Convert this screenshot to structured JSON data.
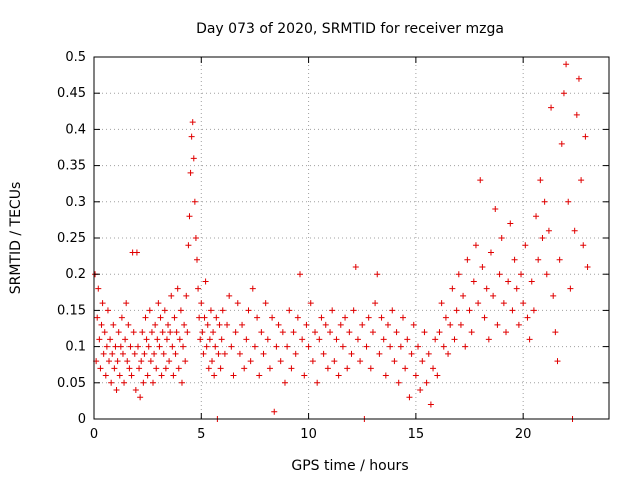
{
  "chart_data": {
    "type": "scatter",
    "title": "Day 073 of 2020, SRMTID for receiver mzga",
    "xlabel": "GPS time / hours",
    "ylabel": "SRMTID / TECUs",
    "xlim": [
      0,
      24
    ],
    "ylim": [
      0,
      0.5
    ],
    "xticks": [
      0,
      5,
      10,
      15,
      20
    ],
    "xtick_labels": [
      "0",
      "5",
      "10",
      "15",
      "20"
    ],
    "yticks": [
      0,
      0.05,
      0.1,
      0.15,
      0.2,
      0.25,
      0.3,
      0.35,
      0.4,
      0.45,
      0.5
    ],
    "ytick_labels": [
      "0",
      "0.05",
      "0.1",
      "0.15",
      "0.2",
      "0.25",
      "0.3",
      "0.35",
      "0.4",
      "0.45",
      "0.5"
    ],
    "grid": true,
    "marker": "+",
    "marker_color": "#e00000",
    "series": [
      {
        "name": "SRMTID",
        "points": [
          [
            0.05,
            0.2
          ],
          [
            0.1,
            0.08
          ],
          [
            0.15,
            0.14
          ],
          [
            0.2,
            0.18
          ],
          [
            0.25,
            0.11
          ],
          [
            0.3,
            0.07
          ],
          [
            0.35,
            0.13
          ],
          [
            0.4,
            0.16
          ],
          [
            0.45,
            0.09
          ],
          [
            0.5,
            0.12
          ],
          [
            0.55,
            0.06
          ],
          [
            0.6,
            0.1
          ],
          [
            0.65,
            0.15
          ],
          [
            0.7,
            0.08
          ],
          [
            0.75,
            0.11
          ],
          [
            0.8,
            0.05
          ],
          [
            0.85,
            0.09
          ],
          [
            0.9,
            0.13
          ],
          [
            0.95,
            0.07
          ],
          [
            1.0,
            0.1
          ],
          [
            1.05,
            0.04
          ],
          [
            1.1,
            0.08
          ],
          [
            1.15,
            0.12
          ],
          [
            1.2,
            0.06
          ],
          [
            1.25,
            0.1
          ],
          [
            1.3,
            0.14
          ],
          [
            1.35,
            0.09
          ],
          [
            1.4,
            0.05
          ],
          [
            1.45,
            0.11
          ],
          [
            1.5,
            0.16
          ],
          [
            1.55,
            0.08
          ],
          [
            1.6,
            0.13
          ],
          [
            1.65,
            0.07
          ],
          [
            1.7,
            0.1
          ],
          [
            1.75,
            0.06
          ],
          [
            1.8,
            0.23
          ],
          [
            1.85,
            0.12
          ],
          [
            1.9,
            0.09
          ],
          [
            1.95,
            0.04
          ],
          [
            2.0,
            0.23
          ],
          [
            2.05,
            0.1
          ],
          [
            2.1,
            0.07
          ],
          [
            2.15,
            0.03
          ],
          [
            2.2,
            0.08
          ],
          [
            2.25,
            0.12
          ],
          [
            2.3,
            0.05
          ],
          [
            2.35,
            0.09
          ],
          [
            2.4,
            0.14
          ],
          [
            2.45,
            0.11
          ],
          [
            2.5,
            0.06
          ],
          [
            2.55,
            0.1
          ],
          [
            2.6,
            0.15
          ],
          [
            2.65,
            0.08
          ],
          [
            2.7,
            0.12
          ],
          [
            2.75,
            0.05
          ],
          [
            2.8,
            0.09
          ],
          [
            2.85,
            0.13
          ],
          [
            2.9,
            0.07
          ],
          [
            2.95,
            0.11
          ],
          [
            3.0,
            0.16
          ],
          [
            3.05,
            0.1
          ],
          [
            3.1,
            0.14
          ],
          [
            3.15,
            0.06
          ],
          [
            3.2,
            0.12
          ],
          [
            3.25,
            0.09
          ],
          [
            3.3,
            0.15
          ],
          [
            3.35,
            0.07
          ],
          [
            3.4,
            0.11
          ],
          [
            3.45,
            0.13
          ],
          [
            3.5,
            0.08
          ],
          [
            3.55,
            0.12
          ],
          [
            3.6,
            0.17
          ],
          [
            3.65,
            0.1
          ],
          [
            3.7,
            0.06
          ],
          [
            3.75,
            0.14
          ],
          [
            3.8,
            0.09
          ],
          [
            3.85,
            0.12
          ],
          [
            3.9,
            0.18
          ],
          [
            3.95,
            0.07
          ],
          [
            4.0,
            0.11
          ],
          [
            4.05,
            0.15
          ],
          [
            4.1,
            0.05
          ],
          [
            4.15,
            0.1
          ],
          [
            4.2,
            0.13
          ],
          [
            4.25,
            0.08
          ],
          [
            4.3,
            0.17
          ],
          [
            4.35,
            0.12
          ],
          [
            4.4,
            0.24
          ],
          [
            4.45,
            0.28
          ],
          [
            4.5,
            0.34
          ],
          [
            4.55,
            0.39
          ],
          [
            4.6,
            0.41
          ],
          [
            4.65,
            0.36
          ],
          [
            4.7,
            0.3
          ],
          [
            4.75,
            0.25
          ],
          [
            4.8,
            0.22
          ],
          [
            4.85,
            0.18
          ],
          [
            4.9,
            0.14
          ],
          [
            4.95,
            0.11
          ],
          [
            5.0,
            0.16
          ],
          [
            5.05,
            0.12
          ],
          [
            5.1,
            0.09
          ],
          [
            5.15,
            0.14
          ],
          [
            5.2,
            0.19
          ],
          [
            5.25,
            0.1
          ],
          [
            5.3,
            0.13
          ],
          [
            5.35,
            0.07
          ],
          [
            5.4,
            0.11
          ],
          [
            5.45,
            0.15
          ],
          [
            5.5,
            0.08
          ],
          [
            5.55,
            0.12
          ],
          [
            5.6,
            0.06
          ],
          [
            5.65,
            0.1
          ],
          [
            5.7,
            0.14
          ],
          [
            5.75,
            0.0
          ],
          [
            5.8,
            0.09
          ],
          [
            5.85,
            0.13
          ],
          [
            5.9,
            0.07
          ],
          [
            5.95,
            0.11
          ],
          [
            6.0,
            0.15
          ],
          [
            6.1,
            0.09
          ],
          [
            6.2,
            0.13
          ],
          [
            6.3,
            0.17
          ],
          [
            6.4,
            0.1
          ],
          [
            6.5,
            0.06
          ],
          [
            6.6,
            0.12
          ],
          [
            6.7,
            0.16
          ],
          [
            6.8,
            0.09
          ],
          [
            6.9,
            0.13
          ],
          [
            7.0,
            0.07
          ],
          [
            7.1,
            0.11
          ],
          [
            7.2,
            0.15
          ],
          [
            7.3,
            0.08
          ],
          [
            7.4,
            0.18
          ],
          [
            7.5,
            0.1
          ],
          [
            7.6,
            0.14
          ],
          [
            7.7,
            0.06
          ],
          [
            7.8,
            0.12
          ],
          [
            7.9,
            0.09
          ],
          [
            8.0,
            0.16
          ],
          [
            8.1,
            0.11
          ],
          [
            8.2,
            0.07
          ],
          [
            8.3,
            0.14
          ],
          [
            8.4,
            0.01
          ],
          [
            8.5,
            0.1
          ],
          [
            8.6,
            0.13
          ],
          [
            8.7,
            0.08
          ],
          [
            8.8,
            0.12
          ],
          [
            8.9,
            0.05
          ],
          [
            9.0,
            0.1
          ],
          [
            9.1,
            0.15
          ],
          [
            9.2,
            0.07
          ],
          [
            9.3,
            0.12
          ],
          [
            9.4,
            0.09
          ],
          [
            9.5,
            0.14
          ],
          [
            9.6,
            0.2
          ],
          [
            9.7,
            0.11
          ],
          [
            9.8,
            0.06
          ],
          [
            9.9,
            0.13
          ],
          [
            10.0,
            0.1
          ],
          [
            10.1,
            0.16
          ],
          [
            10.2,
            0.08
          ],
          [
            10.3,
            0.12
          ],
          [
            10.4,
            0.05
          ],
          [
            10.5,
            0.11
          ],
          [
            10.6,
            0.14
          ],
          [
            10.7,
            0.09
          ],
          [
            10.8,
            0.13
          ],
          [
            10.9,
            0.07
          ],
          [
            11.0,
            0.12
          ],
          [
            11.1,
            0.15
          ],
          [
            11.2,
            0.08
          ],
          [
            11.3,
            0.11
          ],
          [
            11.4,
            0.06
          ],
          [
            11.5,
            0.13
          ],
          [
            11.6,
            0.1
          ],
          [
            11.7,
            0.14
          ],
          [
            11.8,
            0.07
          ],
          [
            11.9,
            0.12
          ],
          [
            12.0,
            0.09
          ],
          [
            12.1,
            0.15
          ],
          [
            12.2,
            0.21
          ],
          [
            12.3,
            0.11
          ],
          [
            12.4,
            0.08
          ],
          [
            12.5,
            0.13
          ],
          [
            12.6,
            0.0
          ],
          [
            12.7,
            0.1
          ],
          [
            12.8,
            0.14
          ],
          [
            12.9,
            0.07
          ],
          [
            13.0,
            0.12
          ],
          [
            13.1,
            0.16
          ],
          [
            13.2,
            0.2
          ],
          [
            13.3,
            0.09
          ],
          [
            13.4,
            0.14
          ],
          [
            13.5,
            0.11
          ],
          [
            13.6,
            0.06
          ],
          [
            13.7,
            0.13
          ],
          [
            13.8,
            0.1
          ],
          [
            13.9,
            0.15
          ],
          [
            14.0,
            0.08
          ],
          [
            14.1,
            0.12
          ],
          [
            14.2,
            0.05
          ],
          [
            14.3,
            0.1
          ],
          [
            14.4,
            0.14
          ],
          [
            14.5,
            0.07
          ],
          [
            14.6,
            0.11
          ],
          [
            14.7,
            0.03
          ],
          [
            14.8,
            0.09
          ],
          [
            14.9,
            0.13
          ],
          [
            15.0,
            0.06
          ],
          [
            15.1,
            0.1
          ],
          [
            15.2,
            0.04
          ],
          [
            15.3,
            0.08
          ],
          [
            15.4,
            0.12
          ],
          [
            15.5,
            0.05
          ],
          [
            15.6,
            0.09
          ],
          [
            15.7,
            0.02
          ],
          [
            15.8,
            0.07
          ],
          [
            15.9,
            0.11
          ],
          [
            16.0,
            0.06
          ],
          [
            16.1,
            0.12
          ],
          [
            16.2,
            0.16
          ],
          [
            16.3,
            0.1
          ],
          [
            16.4,
            0.14
          ],
          [
            16.5,
            0.09
          ],
          [
            16.6,
            0.13
          ],
          [
            16.7,
            0.18
          ],
          [
            16.8,
            0.11
          ],
          [
            16.9,
            0.15
          ],
          [
            17.0,
            0.2
          ],
          [
            17.1,
            0.13
          ],
          [
            17.2,
            0.17
          ],
          [
            17.3,
            0.1
          ],
          [
            17.4,
            0.22
          ],
          [
            17.5,
            0.15
          ],
          [
            17.6,
            0.12
          ],
          [
            17.7,
            0.19
          ],
          [
            17.8,
            0.24
          ],
          [
            17.9,
            0.16
          ],
          [
            18.0,
            0.33
          ],
          [
            18.1,
            0.21
          ],
          [
            18.2,
            0.14
          ],
          [
            18.3,
            0.18
          ],
          [
            18.4,
            0.11
          ],
          [
            18.5,
            0.23
          ],
          [
            18.6,
            0.17
          ],
          [
            18.7,
            0.29
          ],
          [
            18.8,
            0.13
          ],
          [
            18.9,
            0.2
          ],
          [
            19.0,
            0.25
          ],
          [
            19.1,
            0.16
          ],
          [
            19.2,
            0.12
          ],
          [
            19.3,
            0.19
          ],
          [
            19.4,
            0.27
          ],
          [
            19.5,
            0.15
          ],
          [
            19.6,
            0.22
          ],
          [
            19.7,
            0.18
          ],
          [
            19.8,
            0.13
          ],
          [
            19.9,
            0.2
          ],
          [
            20.0,
            0.16
          ],
          [
            20.1,
            0.24
          ],
          [
            20.2,
            0.14
          ],
          [
            20.3,
            0.11
          ],
          [
            20.4,
            0.19
          ],
          [
            20.5,
            0.15
          ],
          [
            20.6,
            0.28
          ],
          [
            20.7,
            0.22
          ],
          [
            20.8,
            0.33
          ],
          [
            20.9,
            0.25
          ],
          [
            21.0,
            0.3
          ],
          [
            21.1,
            0.2
          ],
          [
            21.2,
            0.26
          ],
          [
            21.3,
            0.43
          ],
          [
            21.4,
            0.17
          ],
          [
            21.5,
            0.12
          ],
          [
            21.6,
            0.08
          ],
          [
            21.7,
            0.22
          ],
          [
            21.8,
            0.38
          ],
          [
            21.9,
            0.45
          ],
          [
            22.0,
            0.49
          ],
          [
            22.1,
            0.3
          ],
          [
            22.2,
            0.18
          ],
          [
            22.3,
            0.0
          ],
          [
            22.4,
            0.26
          ],
          [
            22.5,
            0.42
          ],
          [
            22.6,
            0.47
          ],
          [
            22.7,
            0.33
          ],
          [
            22.8,
            0.24
          ],
          [
            22.9,
            0.39
          ],
          [
            23.0,
            0.21
          ]
        ]
      }
    ]
  }
}
